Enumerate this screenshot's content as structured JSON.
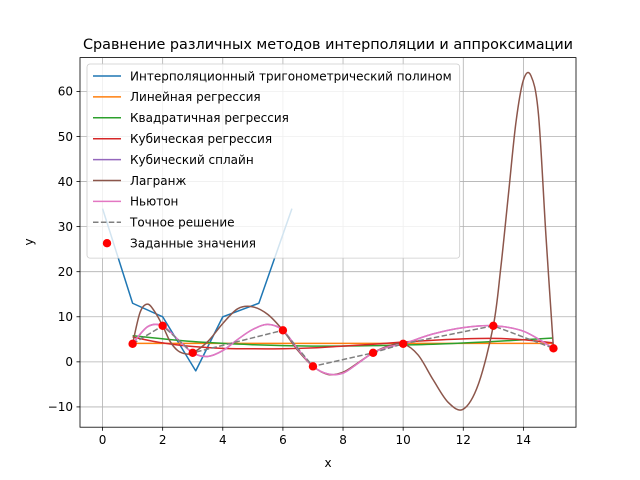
{
  "chart_data": {
    "type": "line",
    "title": "Сравнение различных методов интерполяции и аппроксимации",
    "xlabel": "x",
    "ylabel": "y",
    "xlim": [
      -0.75,
      15.75
    ],
    "ylim": [
      -14.5,
      67.5
    ],
    "xticks": [
      0,
      2,
      4,
      6,
      8,
      10,
      12,
      14
    ],
    "yticks": [
      -10,
      0,
      10,
      20,
      30,
      40,
      50,
      60
    ],
    "grid": true,
    "legend_position": "top-left",
    "points": {
      "name": "Заданные значения",
      "color": "#ff0000",
      "x": [
        1,
        2,
        3,
        6,
        7,
        9,
        10,
        13,
        15
      ],
      "y": [
        4,
        8,
        2,
        7,
        -1,
        2,
        4,
        8,
        3
      ]
    },
    "series": [
      {
        "name": "Интерполяционный тригонометрический полином",
        "color": "#1f77b4",
        "style": "solid",
        "x": [
          0,
          1,
          2,
          3.1,
          4,
          5.2,
          6.3
        ],
        "y": [
          34,
          13,
          10,
          -2,
          10,
          13,
          34
        ]
      },
      {
        "name": "Линейная регрессия",
        "color": "#ff7f0e",
        "style": "solid",
        "x": [
          1,
          15
        ],
        "y": [
          4.1,
          4.1
        ]
      },
      {
        "name": "Квадратичная регрессия",
        "color": "#2ca02c",
        "style": "solid",
        "x": [
          1,
          3,
          5,
          7,
          9,
          11,
          13,
          15
        ],
        "y": [
          5.8,
          4.5,
          3.8,
          3.5,
          3.6,
          3.9,
          4.5,
          5.3
        ]
      },
      {
        "name": "Кубическая регрессия",
        "color": "#d62728",
        "style": "solid",
        "x": [
          1,
          2,
          3,
          4,
          5,
          6,
          7,
          8,
          9,
          10,
          11,
          12,
          13,
          14,
          15
        ],
        "y": [
          5.5,
          4.2,
          3.4,
          3.0,
          2.9,
          2.9,
          3.1,
          3.5,
          3.9,
          4.4,
          4.8,
          5.1,
          5.2,
          4.9,
          4.2
        ]
      },
      {
        "name": "Кубический сплайн",
        "color": "#9467bd",
        "style": "solid",
        "x": [
          1,
          1.5,
          2,
          2.5,
          3,
          3.5,
          4,
          4.5,
          5,
          5.5,
          6,
          6.5,
          7,
          7.5,
          8,
          8.5,
          9,
          9.5,
          10,
          11,
          12,
          13,
          14,
          15
        ],
        "y": [
          4,
          7.8,
          8,
          5,
          2,
          1.2,
          2.5,
          5,
          7.2,
          8.3,
          7,
          2.8,
          -1,
          -2.7,
          -2.5,
          -0.3,
          2,
          3.3,
          4,
          6.2,
          7.6,
          8,
          6.8,
          3
        ]
      },
      {
        "name": "Лагранж",
        "color": "#8c564b",
        "style": "solid",
        "x": [
          1,
          1.25,
          1.5,
          1.75,
          2,
          2.25,
          2.5,
          2.75,
          3,
          3.5,
          4,
          4.5,
          5,
          5.5,
          6,
          6.5,
          7,
          7.5,
          8,
          8.5,
          9,
          9.5,
          10,
          10.5,
          11,
          11.5,
          12,
          12.5,
          13,
          13.25,
          13.5,
          13.75,
          14,
          14.25,
          14.5,
          14.75,
          15
        ],
        "y": [
          4,
          11,
          12.8,
          11,
          8,
          4.5,
          2.5,
          1.8,
          2,
          4.5,
          8.5,
          11.8,
          12.2,
          10.5,
          7,
          2.5,
          -1,
          -2.8,
          -2.3,
          -0.2,
          2,
          3.5,
          4,
          1.5,
          -4,
          -9,
          -10.5,
          -5,
          8,
          21,
          37,
          53,
          62.5,
          63.5,
          55,
          28,
          3
        ]
      },
      {
        "name": "Ньютон",
        "color": "#e377c2",
        "style": "solid",
        "x": [
          1,
          1.5,
          2,
          2.5,
          3,
          3.5,
          4,
          4.5,
          5,
          5.5,
          6,
          6.5,
          7,
          7.5,
          8,
          8.5,
          9,
          9.5,
          10,
          11,
          12,
          13,
          14,
          15
        ],
        "y": [
          4,
          7.8,
          8,
          5,
          2,
          1.2,
          2.5,
          5,
          7.2,
          8.3,
          7,
          2.8,
          -1,
          -2.7,
          -2.5,
          -0.3,
          2,
          3.3,
          4,
          6.2,
          7.6,
          8,
          6.8,
          3
        ]
      },
      {
        "name": "Точное решение",
        "color": "#7f7f7f",
        "style": "dashed",
        "x": [
          1,
          2,
          3,
          6,
          7,
          9,
          10,
          13,
          15
        ],
        "y": [
          4,
          8,
          2,
          7,
          -1,
          2,
          4,
          8,
          3
        ]
      }
    ]
  }
}
